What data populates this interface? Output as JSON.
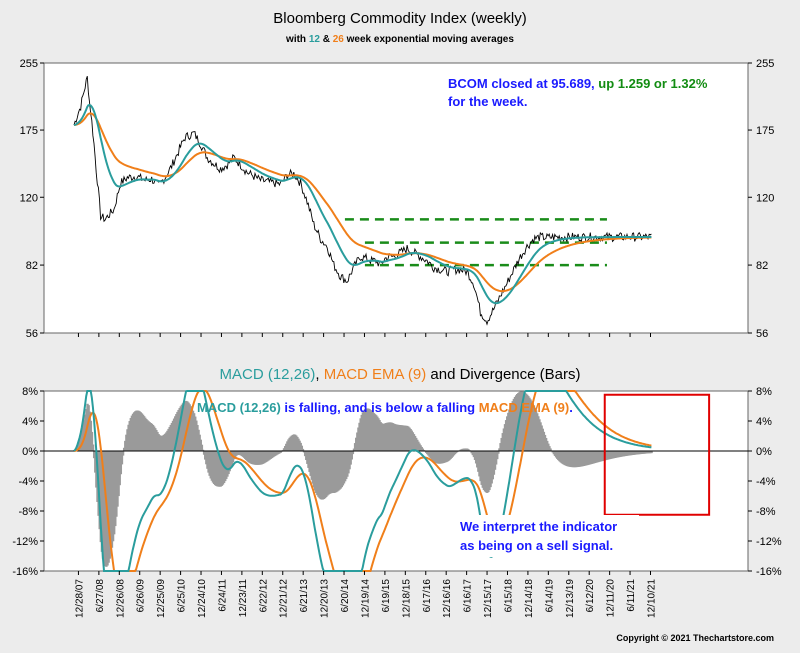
{
  "chart_data": [
    {
      "type": "line",
      "title": "Bloomberg Commodity Index (weekly)",
      "subtitle": {
        "prefix": "with ",
        "fast": "12",
        "and": " & ",
        "slow": "26",
        "suffix": " week exponential moving averages"
      },
      "yscale": "log",
      "ylim": [
        56,
        255
      ],
      "yticks": [
        255,
        175,
        120,
        82,
        56
      ],
      "x_tick_labels": [
        "12/28/07",
        "6/27/08",
        "12/26/08",
        "6/26/09",
        "12/25/09",
        "6/25/10",
        "12/24/10",
        "6/24/11",
        "12/23/11",
        "6/22/12",
        "12/21/12",
        "6/21/13",
        "12/20/13",
        "6/20/14",
        "12/19/14",
        "6/19/15",
        "12/18/15",
        "6/17/16",
        "12/16/16",
        "6/16/17",
        "12/15/17",
        "6/15/18",
        "12/14/18",
        "6/14/19",
        "12/13/19",
        "6/12/20",
        "12/11/20",
        "6/11/21",
        "12/10/21"
      ],
      "annotation": {
        "line1_blue": "BCOM closed at 95.689,",
        "line1_green": " up 1.259 or 1.32%",
        "line2_blue": "for the week."
      },
      "horizontal_levels": [
        106,
        93,
        82
      ],
      "series": [
        {
          "role": "price",
          "color": "#000000",
          "x": [
            0,
            3,
            6,
            7,
            10,
            12,
            14,
            18,
            21,
            24,
            28,
            32,
            35,
            38,
            41,
            44,
            47,
            50,
            54,
            57,
            60,
            63,
            66,
            69,
            72,
            75,
            78,
            81,
            84,
            87,
            90,
            93,
            96,
            99,
            102,
            105,
            108,
            111,
            114,
            117,
            120,
            123,
            126,
            129,
            132,
            134,
            136,
            138,
            140,
            142,
            144,
            147,
            150,
            153,
            156,
            159,
            162,
            165,
            168,
            171,
            174,
            177,
            180,
            183,
            186,
            189,
            192,
            195,
            198,
            201,
            204,
            207,
            210,
            213,
            216,
            219,
            222,
            225,
            228,
            231,
            234,
            237,
            240,
            243,
            246,
            249,
            252,
            255,
            258,
            261,
            264,
            267,
            270,
            273,
            276,
            279,
            282,
            285,
            288
          ],
          "y": [
            180,
            200,
            235,
            205,
            140,
            108,
            106,
            112,
            130,
            134,
            135,
            132,
            133,
            128,
            134,
            143,
            155,
            168,
            172,
            162,
            150,
            145,
            141,
            144,
            150,
            144,
            138,
            135,
            132,
            131,
            130,
            129,
            136,
            137,
            130,
            117,
            103,
            95,
            91,
            82,
            77,
            75,
            81,
            86,
            85,
            84,
            84,
            82,
            85,
            86,
            86,
            88,
            90,
            88,
            86,
            84,
            81,
            80,
            79,
            80,
            80,
            79,
            74,
            63,
            60,
            64,
            69,
            74,
            80,
            86,
            91,
            95,
            96,
            95.7,
            96,
            96,
            96,
            96,
            96,
            96,
            96,
            96,
            96,
            96,
            96,
            96,
            96,
            96,
            96,
            96,
            96,
            96,
            96,
            96,
            96,
            96,
            96,
            96,
            96
          ]
        },
        {
          "role": "ema12",
          "color": "#2a9d9d"
        },
        {
          "role": "ema26",
          "color": "#f07f1a"
        }
      ]
    },
    {
      "type": "line",
      "title": "MACD (12,26), MACD EMA (9) and Divergence (Bars)",
      "title_parts": {
        "macd": "MACD (12,26)",
        "sep1": ", ",
        "ema": "MACD EMA (9)",
        "rest": " and Divergence (Bars)"
      },
      "ylim": [
        -16,
        8
      ],
      "yticks": [
        "8%",
        "4%",
        "0%",
        "-4%",
        "-8%",
        "-12%",
        "-16%"
      ],
      "ytick_values": [
        8,
        4,
        0,
        -4,
        -8,
        -12,
        -16
      ],
      "annotation_top": {
        "macd": "MACD (12,26)",
        "mid": " is falling, and is below a falling ",
        "ema": "MACD EMA (9)",
        "end": "."
      },
      "annotation_bottom": [
        "We interpret the indicator",
        "as being on a sell signal."
      ],
      "highlight_box_x": [
        239,
        286
      ],
      "highlight_box_y": [
        -8.5,
        7.5
      ],
      "series": [
        {
          "name": "MACD (12,26)",
          "color": "#2a9d9d"
        },
        {
          "name": "MACD EMA (9)",
          "color": "#f07f1a"
        },
        {
          "name": "Divergence (Bars)",
          "color": "#9a9a9a"
        }
      ]
    }
  ],
  "copyright": "Copyright © 2021 Thechartstore.com",
  "colors": {
    "panel_bg": "#ffffff",
    "outer_bg": "#ececec",
    "ema12": "#2a9d9d",
    "ema26": "#f07f1a",
    "levels": "#1a8c1a",
    "highlight": "#e00000",
    "annotation_blue": "#1a1aff",
    "annotation_green": "#128c12"
  }
}
